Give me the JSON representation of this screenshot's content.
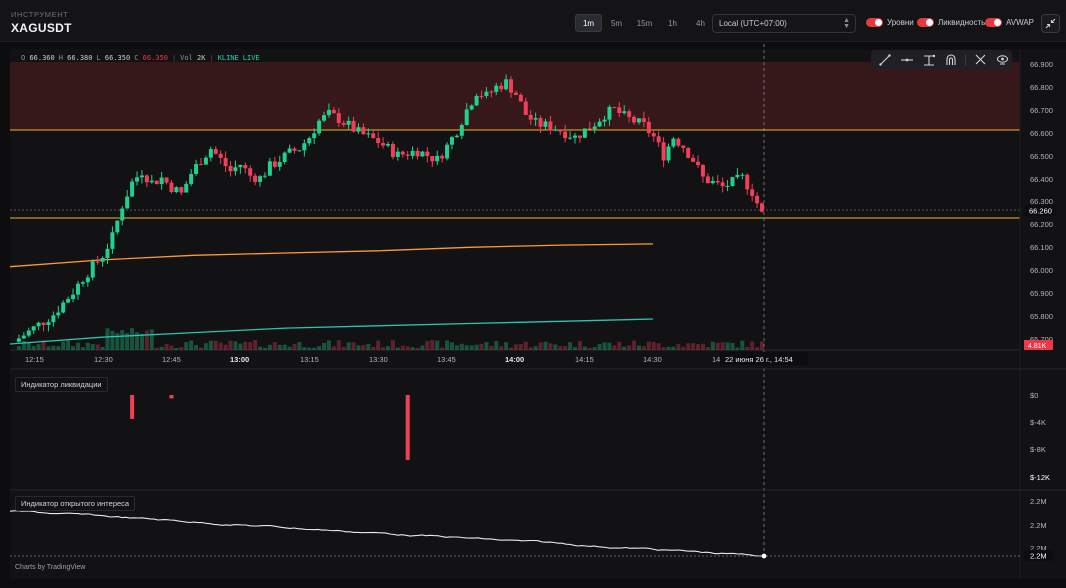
{
  "header": {
    "instrument_label": "ИНСТРУМЕНТ",
    "symbol": "XAGUSDT",
    "timeframes": [
      {
        "label": "1m",
        "active": true
      },
      {
        "label": "5m",
        "active": false
      },
      {
        "label": "15m",
        "active": false
      },
      {
        "label": "1h",
        "active": false
      },
      {
        "label": "4h",
        "active": false
      }
    ],
    "timezone": "Local (UTC+07:00)",
    "toggles": [
      {
        "label": "Уровни",
        "on": true
      },
      {
        "label": "Ликвидность",
        "on": true
      },
      {
        "label": "AVWAP",
        "on": true
      }
    ]
  },
  "ohlc": {
    "o_key": "O",
    "o": "66.360",
    "h_key": "H",
    "h": "66.380",
    "l_key": "L",
    "l": "66.350",
    "c_key": "C",
    "c": "66.350",
    "vol_key": "Vol",
    "vol": "2K",
    "source": "KLINE",
    "live": "LIVE"
  },
  "toolbar": {
    "tools": [
      "trend-line-icon",
      "horizontal-ray-icon",
      "measure-icon",
      "magnet-icon",
      "remove-drawings-icon",
      "visibility-icon"
    ]
  },
  "price_axis": {
    "labels": [
      "66.900",
      "66.800",
      "66.700",
      "66.600",
      "66.500",
      "66.400",
      "66.300",
      "66.200",
      "66.100",
      "66.000",
      "65.900",
      "65.800",
      "65.700"
    ],
    "last_price": "66.260",
    "volume_badge": "4.81K"
  },
  "time_axis": {
    "labels": [
      "12:15",
      "12:30",
      "12:45",
      "13:00",
      "13:15",
      "13:30",
      "13:45",
      "14:00",
      "14:15",
      "14:30",
      "14"
    ],
    "bold_labels": [
      "13:00",
      "14:00"
    ],
    "crosshair_time": "22 июня 26 г., 14:54"
  },
  "liquidation_pane": {
    "title": "Индикатор ликвидации",
    "axis_labels": [
      "$0",
      "$-4K",
      "$-8K",
      "$-12K"
    ]
  },
  "oi_pane": {
    "title": "Индикатор открытого интереса",
    "axis_labels": [
      "2.2M",
      "2.2M",
      "2.2M"
    ],
    "current": "2.2M"
  },
  "footer": {
    "credit": "Charts by TradingView"
  },
  "chart_data": {
    "type": "candlestick",
    "symbol": "XAGUSDT",
    "interval": "1m",
    "time_ticks": [
      "12:15",
      "12:30",
      "12:45",
      "13:00",
      "13:15",
      "13:30",
      "13:45",
      "14:00",
      "14:15",
      "14:30"
    ],
    "price_range": [
      65.69,
      66.93
    ],
    "resistance_zone": [
      66.62,
      66.93
    ],
    "levels": [
      66.62,
      66.22
    ],
    "last_price": 66.26,
    "close_path": [
      65.7,
      65.73,
      65.76,
      65.79,
      65.82,
      65.87,
      65.92,
      65.98,
      66.03,
      66.08,
      66.16,
      66.3,
      66.4,
      66.45,
      66.4,
      66.42,
      66.38,
      66.35,
      66.44,
      66.5,
      66.55,
      66.5,
      66.45,
      66.48,
      66.43,
      66.42,
      66.47,
      66.5,
      66.53,
      66.55,
      66.6,
      66.67,
      66.7,
      66.68,
      66.65,
      66.62,
      66.6,
      66.58,
      66.55,
      66.52,
      66.53,
      66.54,
      66.52,
      66.5,
      66.56,
      66.63,
      66.72,
      66.8,
      66.78,
      66.82,
      66.84,
      66.79,
      66.7,
      66.66,
      66.65,
      66.64,
      66.62,
      66.6,
      66.63,
      66.66,
      66.7,
      66.72,
      66.69,
      66.67,
      66.65,
      66.6,
      66.52,
      66.6,
      66.56,
      66.5,
      66.42,
      66.4,
      66.38,
      66.4,
      66.42,
      66.36,
      66.26
    ],
    "avwap_series": [
      {
        "color": "#ff9838",
        "values": [
          66.03,
          66.06,
          66.08,
          66.09,
          66.1,
          66.115,
          66.125,
          66.13
        ]
      },
      {
        "color": "#26c6b1",
        "values": [
          65.69,
          65.72,
          65.74,
          65.76,
          65.77,
          65.78,
          65.79,
          65.8
        ]
      }
    ],
    "liquidations": [
      {
        "time_index": 12,
        "value": -3500
      },
      {
        "time_index": 16,
        "value": -500
      },
      {
        "time_index": 40,
        "value": -9500
      }
    ],
    "open_interest_trend": "declining"
  }
}
